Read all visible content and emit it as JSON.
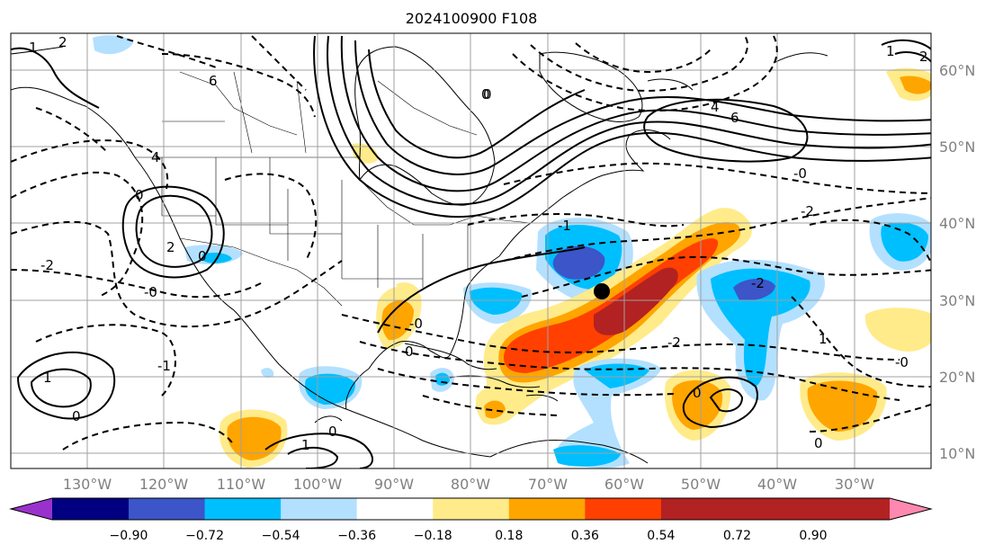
{
  "title": "2024100900 F108",
  "longitude_labels": [
    "130°W",
    "120°W",
    "110°W",
    "100°W",
    "90°W",
    "80°W",
    "70°W",
    "60°W",
    "50°W",
    "40°W",
    "30°W"
  ],
  "latitude_labels": [
    "60°N",
    "50°N",
    "40°N",
    "30°N",
    "20°N",
    "10°N"
  ],
  "colorbar": {
    "colors": [
      "#9932cc",
      "#000080",
      "#3c55c8",
      "#00bfff",
      "#b3e0ff",
      "#ffffff",
      "#ffeb8a",
      "#ffa500",
      "#ff4000",
      "#b22222",
      "#ff88b0"
    ],
    "tick_labels": [
      "−0.90",
      "−0.72",
      "−0.54",
      "−0.36",
      "−0.18",
      "0.18",
      "0.36",
      "0.54",
      "0.72",
      "0.90"
    ]
  },
  "contour_labels": [
    "1",
    "2",
    "4",
    "6",
    "0",
    "-2",
    "2",
    "0",
    "-0",
    "1",
    "0",
    "-1",
    "4",
    "6",
    "0",
    "-0",
    "-2",
    "-2",
    "1",
    "-2",
    "0",
    "-0",
    "0",
    "1",
    "0",
    "0",
    "-0",
    "2",
    "-1",
    "0",
    "1"
  ],
  "marker": "storm-center"
}
